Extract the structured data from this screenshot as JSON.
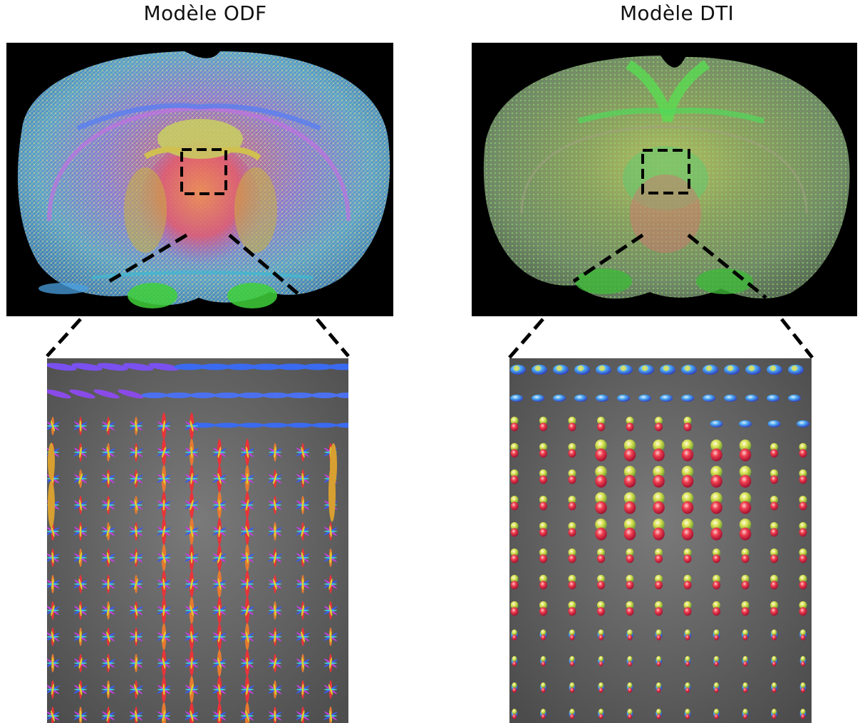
{
  "titles": {
    "odf": "Modèle ODF",
    "dti": "Modèle DTI"
  },
  "colors": {
    "background": "#ffffff",
    "panel": "#000000",
    "zoom_bg": "#5e5e5e",
    "dash": "#000000"
  },
  "glyph_colors": {
    "red": "#e8343a",
    "green": "#4ad646",
    "blue": "#3c5cf0",
    "yellow": "#d9d030",
    "magenta": "#c040e0",
    "cyan": "#40c8d8",
    "orange": "#e87a30"
  }
}
